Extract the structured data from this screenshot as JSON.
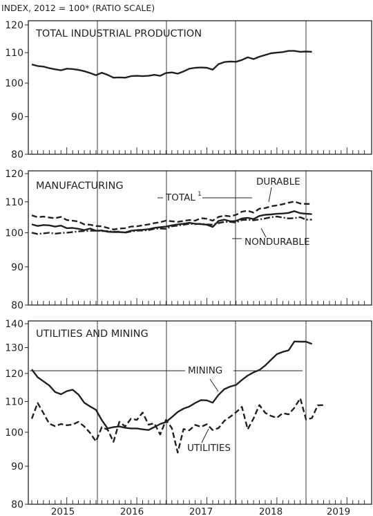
{
  "header": "INDEX, 2012 = 100* (RATIO SCALE)",
  "chart_data": [
    {
      "type": "line",
      "title": "TOTAL INDUSTRIAL PRODUCTION",
      "ylim": [
        80,
        120
      ],
      "yticks": [
        "80",
        "90",
        "100",
        "110",
        "120"
      ],
      "log_scale": true,
      "x_start": "2015-01",
      "series": [
        {
          "style": "solid",
          "values": [
            106.0,
            105.5,
            105.3,
            104.8,
            104.4,
            104.1,
            104.6,
            104.5,
            104.2,
            103.8,
            103.2,
            102.5,
            103.3,
            102.6,
            101.7,
            101.8,
            101.7,
            102.2,
            102.3,
            102.2,
            102.3,
            102.6,
            102.3,
            103.2,
            103.4,
            103.0,
            103.7,
            104.6,
            104.9,
            105.0,
            104.9,
            104.3,
            106.1,
            106.8,
            107.0,
            106.9,
            107.5,
            108.4,
            107.8,
            108.6,
            109.2,
            109.8,
            110.0,
            110.2,
            110.6,
            110.6,
            110.3,
            110.4,
            110.3
          ]
        }
      ]
    },
    {
      "type": "line",
      "title": "MANUFACTURING",
      "ylim": [
        80,
        120
      ],
      "yticks": [
        "80",
        "90",
        "100",
        "110",
        "120"
      ],
      "log_scale": true,
      "x_start": "2015-01",
      "annotations": [
        "TOTAL",
        "DURABLE",
        "NONDURABLE"
      ],
      "total_footnote": "1",
      "series": [
        {
          "name": "DURABLE",
          "style": "dashed",
          "values": [
            105.5,
            104.9,
            105.1,
            104.8,
            104.6,
            105.0,
            104.0,
            103.8,
            103.5,
            102.6,
            102.5,
            102.1,
            102.0,
            101.5,
            101.0,
            101.3,
            101.4,
            101.9,
            102.0,
            102.3,
            102.6,
            103.0,
            103.3,
            103.8,
            103.6,
            103.4,
            103.7,
            104.0,
            103.8,
            104.6,
            104.4,
            103.8,
            105.0,
            105.4,
            105.2,
            105.7,
            106.7,
            107.0,
            106.4,
            107.7,
            107.9,
            108.5,
            108.8,
            109.2,
            109.7,
            110.1,
            109.4,
            109.3,
            109.3
          ]
        },
        {
          "name": "TOTAL",
          "style": "solid",
          "values": [
            102.6,
            102.1,
            102.4,
            102.3,
            101.9,
            102.2,
            101.4,
            101.5,
            101.2,
            100.8,
            101.3,
            100.6,
            100.7,
            100.3,
            100.2,
            100.2,
            100.1,
            100.6,
            100.8,
            100.9,
            101.1,
            101.5,
            101.7,
            101.9,
            102.3,
            102.6,
            102.8,
            103.1,
            102.8,
            102.7,
            102.5,
            101.8,
            103.7,
            104.1,
            103.6,
            103.7,
            104.5,
            104.7,
            104.3,
            105.3,
            105.7,
            105.8,
            106.0,
            106.1,
            106.3,
            106.9,
            106.2,
            106.0,
            105.9
          ]
        },
        {
          "name": "NONDURABLE",
          "style": "dashdot",
          "values": [
            100.0,
            99.6,
            99.8,
            100.0,
            99.7,
            99.9,
            100.0,
            100.2,
            100.4,
            100.5,
            100.6,
            100.6,
            100.5,
            100.5,
            100.3,
            100.3,
            100.0,
            100.4,
            100.6,
            100.7,
            100.8,
            101.2,
            101.3,
            101.2,
            102.0,
            102.2,
            102.5,
            102.8,
            102.7,
            102.8,
            102.6,
            102.5,
            103.0,
            103.4,
            103.4,
            103.2,
            104.0,
            104.1,
            103.9,
            104.2,
            104.5,
            104.9,
            105.1,
            104.8,
            104.5,
            104.6,
            104.9,
            104.1,
            104.1
          ]
        }
      ]
    },
    {
      "type": "line",
      "title": "UTILITIES AND MINING",
      "ylim": [
        80,
        140
      ],
      "yticks": [
        "80",
        "90",
        "100",
        "110",
        "120",
        "130",
        "140"
      ],
      "log_scale": true,
      "x_start": "2015-01",
      "annotations": [
        "MINING",
        "UTILITIES"
      ],
      "xticks": [
        "2015",
        "2016",
        "2017",
        "2018",
        "2019"
      ],
      "series": [
        {
          "name": "MINING",
          "style": "solid",
          "values": [
            121.5,
            118.6,
            117.1,
            115.6,
            113.3,
            112.5,
            113.6,
            114.1,
            112.4,
            109.6,
            108.3,
            107.2,
            103.8,
            101.2,
            101.6,
            101.8,
            101.4,
            101.2,
            101.2,
            100.9,
            100.7,
            101.6,
            102.6,
            103.2,
            104.8,
            106.5,
            107.6,
            108.3,
            109.5,
            110.5,
            110.4,
            109.6,
            112.3,
            114.3,
            115.2,
            115.8,
            117.6,
            119.2,
            120.4,
            121.3,
            123.0,
            125.2,
            127.4,
            128.3,
            128.9,
            132.5,
            132.4,
            132.4,
            131.5
          ]
        },
        {
          "name": "UTILITIES",
          "style": "dashed",
          "values": [
            104.3,
            109.5,
            106.1,
            102.7,
            101.9,
            102.6,
            102.2,
            102.4,
            103.3,
            101.8,
            99.8,
            97.2,
            101.6,
            100.8,
            97.1,
            103.3,
            101.8,
            104.3,
            103.9,
            106.3,
            102.4,
            102.8,
            99.3,
            103.9,
            101.3,
            93.9,
            101.0,
            100.6,
            102.3,
            101.7,
            102.5,
            100.7,
            101.3,
            103.6,
            104.9,
            106.4,
            108.2,
            100.9,
            104.4,
            108.8,
            106.2,
            105.2,
            104.6,
            106.1,
            105.7,
            107.9,
            111.1,
            104.0,
            104.5,
            108.7,
            108.8
          ]
        }
      ]
    }
  ]
}
